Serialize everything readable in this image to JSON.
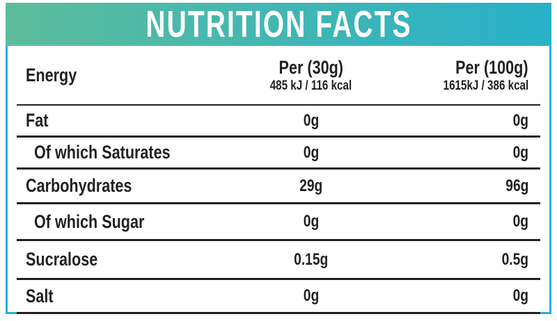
{
  "header": {
    "title": "NUTRITION FACTS",
    "gradient_left": "#5cbc9b",
    "gradient_right": "#28b1c9"
  },
  "table": {
    "border_color": "#29abe2",
    "text_color": "#231f20",
    "energy": {
      "label": "Energy",
      "per30_title": "Per (30g)",
      "per30_detail": "485 kJ / 116 kcal",
      "per100_title": "Per (100g)",
      "per100_detail": "1615kJ / 386 kcal"
    },
    "rows": [
      {
        "label": "Fat",
        "per30": "0g",
        "per100": "0g"
      },
      {
        "label": "Of which Saturates",
        "per30": "0g",
        "per100": "0g"
      },
      {
        "label": "Carbohydrates",
        "per30": "29g",
        "per100": "96g"
      },
      {
        "label": "Of which Sugar",
        "per30": "0g",
        "per100": "0g"
      },
      {
        "label": "Sucralose",
        "per30": "0.15g",
        "per100": "0.5g"
      },
      {
        "label": "Salt",
        "per30": "0g",
        "per100": "0g"
      }
    ]
  }
}
